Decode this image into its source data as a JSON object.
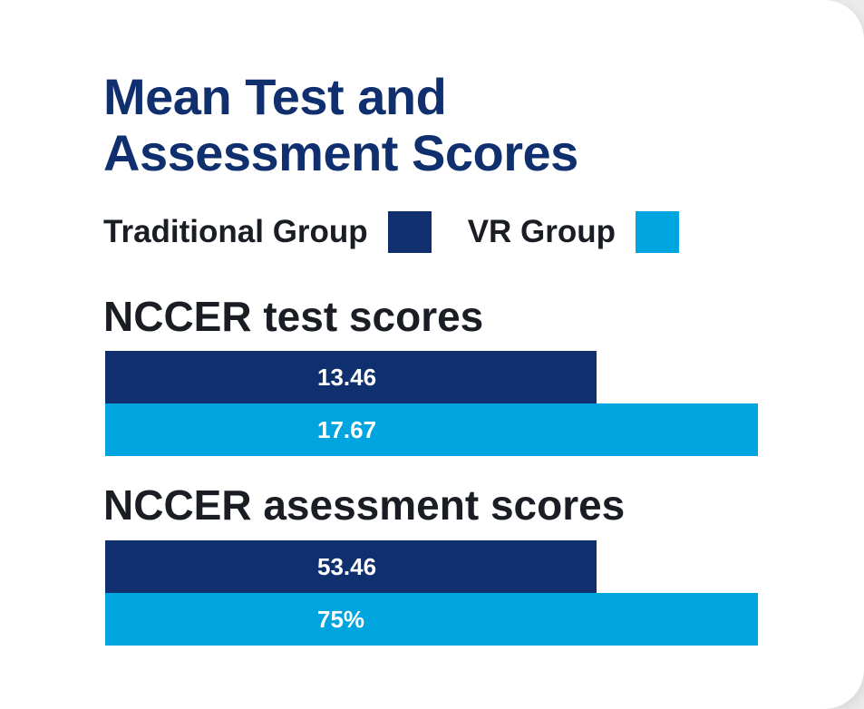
{
  "colors": {
    "traditional": "#0f2f6e",
    "vr": "#00a4df",
    "title": "#0f2f6e",
    "text": "#1a1d24"
  },
  "chart_data": {
    "type": "bar",
    "orientation": "horizontal",
    "title_lines": [
      "Mean Test and",
      "Assessment Scores"
    ],
    "legend": [
      {
        "name": "Traditional Group",
        "color": "#0f2f6e"
      },
      {
        "name": "VR Group",
        "color": "#00a4df"
      }
    ],
    "groups": [
      {
        "title": "NCCER test scores",
        "bars": [
          {
            "series": "Traditional Group",
            "value": 13.46,
            "label": "13.46",
            "relative_length": 0.753
          },
          {
            "series": "VR Group",
            "value": 17.67,
            "label": "17.67",
            "relative_length": 1.0
          }
        ]
      },
      {
        "title": "NCCER asessment scores",
        "bars": [
          {
            "series": "Traditional Group",
            "value": 53.46,
            "label": "53.46",
            "relative_length": 0.753
          },
          {
            "series": "VR Group",
            "value": 75,
            "label": "75%",
            "relative_length": 1.0
          }
        ]
      }
    ]
  }
}
